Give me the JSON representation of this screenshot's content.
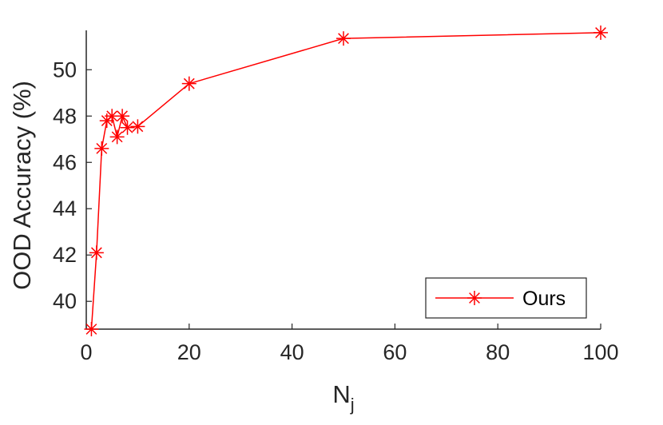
{
  "chart_data": {
    "type": "line",
    "title": "",
    "xlabel": "N",
    "xlabel_subscript": "j",
    "ylabel": "OOD Accuracy (%)",
    "xlim": [
      0,
      100
    ],
    "ylim": [
      38.8,
      51.7
    ],
    "xticks": [
      0,
      20,
      40,
      60,
      80,
      100
    ],
    "yticks": [
      40,
      42,
      44,
      46,
      48,
      50
    ],
    "grid": false,
    "legend_position": "bottom-right",
    "series": [
      {
        "name": "Ours",
        "color": "#ff0000",
        "marker": "asterisk",
        "x": [
          1,
          2,
          3,
          4,
          5,
          6,
          7,
          8,
          10,
          20,
          50,
          100
        ],
        "y": [
          38.8,
          42.1,
          46.6,
          47.8,
          48.0,
          47.1,
          48.0,
          47.5,
          47.55,
          49.4,
          51.35,
          51.6
        ]
      }
    ]
  }
}
